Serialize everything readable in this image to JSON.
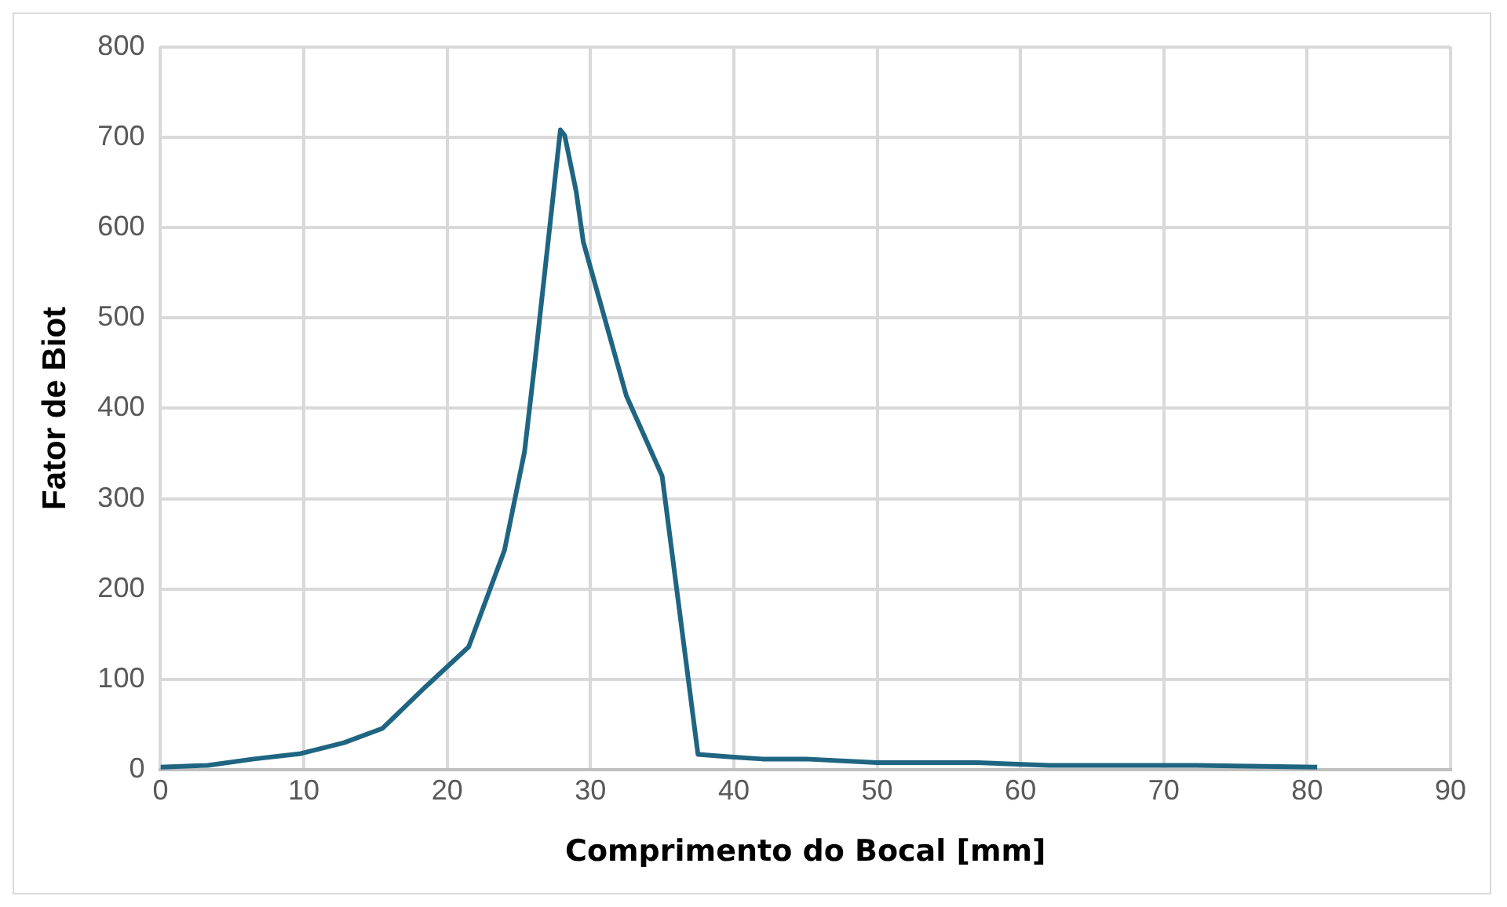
{
  "chart_data": {
    "type": "line",
    "xlabel": "Comprimento do Bocal [mm]",
    "ylabel": "Fator de Biot",
    "x": [
      0,
      3.3,
      6.5,
      9.8,
      12.8,
      15.5,
      18.5,
      21.5,
      24.0,
      25.4,
      26.1,
      27.9,
      28.2,
      29.0,
      29.5,
      32.5,
      35.0,
      37.5,
      40,
      42,
      45,
      50,
      57,
      62,
      72,
      80.7
    ],
    "series": [
      {
        "color": "#1f6582",
        "values": [
          3,
          5,
          12,
          18,
          30,
          46,
          92,
          136,
          243,
          352,
          448,
          708,
          702,
          640,
          584,
          414,
          325,
          17,
          14,
          12,
          12,
          8,
          8,
          5,
          5,
          3
        ]
      }
    ],
    "xlim": [
      0,
      90
    ],
    "xticks": [
      0,
      10,
      20,
      30,
      40,
      50,
      60,
      70,
      80,
      90
    ],
    "ylim": [
      0,
      800
    ],
    "yticks": [
      0,
      100,
      200,
      300,
      400,
      500,
      600,
      700,
      800
    ],
    "grid": true,
    "legend": false,
    "marker": "none",
    "line_style": "solid"
  }
}
